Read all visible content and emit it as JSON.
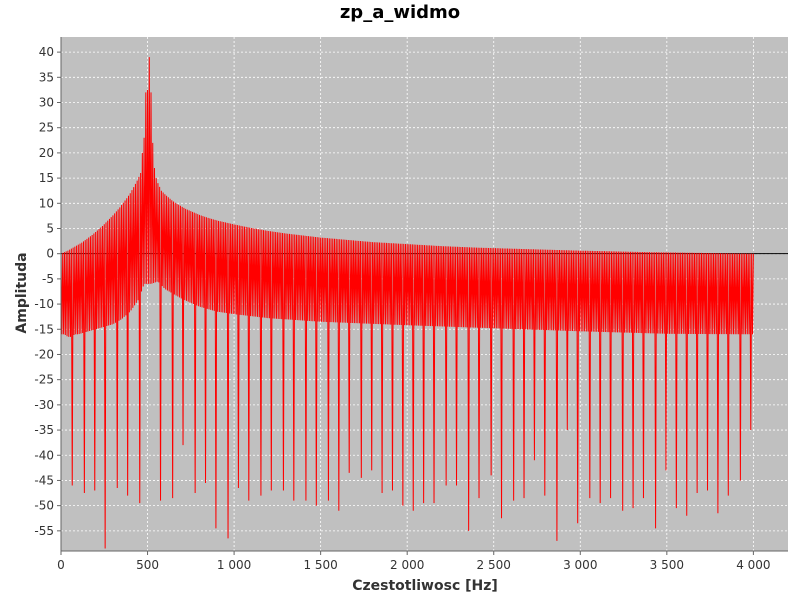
{
  "chart_data": {
    "type": "line",
    "title": "zp_a_widmo",
    "xlabel": "Czestotliwosc [Hz]",
    "ylabel": "Amplituda",
    "xlim": [
      0,
      4200
    ],
    "ylim": [
      -59,
      43
    ],
    "x_ticks": [
      0,
      500,
      1000,
      1500,
      2000,
      2500,
      3000,
      3500,
      4000
    ],
    "x_tick_labels": [
      "0",
      "500",
      "1 000",
      "1 500",
      "2 000",
      "2 500",
      "3 000",
      "3 500",
      "4 000"
    ],
    "y_ticks": [
      -55,
      -50,
      -45,
      -40,
      -35,
      -30,
      -25,
      -20,
      -15,
      -10,
      -5,
      0,
      5,
      10,
      15,
      20,
      25,
      30,
      35,
      40
    ],
    "y_tick_labels": [
      "-55",
      "-50",
      "-45",
      "-40",
      "-35",
      "-30",
      "-25",
      "-20",
      "-15",
      "-10",
      "-5",
      "0",
      "5",
      "10",
      "15",
      "20",
      "25",
      "30",
      "35",
      "40"
    ],
    "grid": true,
    "plot_background": "#c0c0c0",
    "series": [
      {
        "color": "#ff0000",
        "x": [
          0,
          20,
          40,
          60,
          80,
          100,
          120,
          140,
          160,
          180,
          200,
          220,
          240,
          260,
          280,
          300,
          320,
          340,
          360,
          380,
          400,
          420,
          440,
          460,
          470,
          480,
          490,
          500,
          510,
          520,
          530,
          540,
          550,
          560,
          580,
          600,
          620,
          640,
          660,
          680,
          700,
          720,
          740,
          760,
          780,
          800,
          850,
          900,
          950,
          1000,
          1100,
          1200,
          1300,
          1400,
          1500,
          1600,
          1700,
          1800,
          1900,
          2000,
          2200,
          2400,
          2600,
          2800,
          3000,
          3200,
          3400,
          3600,
          3800,
          4000
        ],
        "y": [
          0,
          0.3,
          0.6,
          1,
          1.4,
          1.8,
          2.2,
          2.7,
          3.2,
          3.7,
          4.3,
          4.9,
          5.5,
          6.2,
          6.9,
          7.6,
          8.4,
          9.2,
          10.1,
          11,
          12,
          13.2,
          14.5,
          16,
          20,
          23,
          32,
          32.5,
          39,
          32,
          22,
          17,
          15,
          14,
          12.5,
          11.8,
          11.2,
          10.6,
          10.1,
          9.7,
          9.3,
          8.9,
          8.6,
          8.3,
          8,
          7.7,
          7.1,
          6.6,
          6.2,
          5.8,
          5.1,
          4.5,
          4,
          3.6,
          3.2,
          2.9,
          2.6,
          2.3,
          2.1,
          1.9,
          1.5,
          1.2,
          1,
          0.8,
          0.6,
          0.45,
          0.3,
          0.2,
          0.1,
          0
        ],
        "trough_x": [
          0,
          20,
          40,
          60,
          80,
          100,
          150,
          200,
          250,
          300,
          350,
          400,
          450,
          480,
          500,
          520,
          560,
          600,
          650,
          700,
          800,
          900,
          1000,
          1200,
          1500,
          2000,
          2500,
          3000,
          3500,
          4000
        ],
        "trough_y": [
          -16,
          -16,
          -16.5,
          -16.5,
          -16,
          -16,
          -15.5,
          -15,
          -14.5,
          -14,
          -13,
          -11.5,
          -9,
          -6,
          -6,
          -6,
          -5.5,
          -7,
          -8,
          -9,
          -10.5,
          -11.5,
          -12,
          -12.8,
          -13.5,
          -14.2,
          -14.8,
          -15.4,
          -15.9,
          -16
        ],
        "dips": [
          [
            65,
            -46
          ],
          [
            130,
            -47.5
          ],
          [
            195,
            -47
          ],
          [
            250,
            -58.5
          ],
          [
            320,
            -46.5
          ],
          [
            385,
            -48
          ],
          [
            450,
            -49.5
          ],
          [
            575,
            -49
          ],
          [
            640,
            -48.5
          ],
          [
            705,
            -38
          ],
          [
            770,
            -47.5
          ],
          [
            835,
            -45.5
          ],
          [
            895,
            -54.5
          ],
          [
            960,
            -56.5
          ],
          [
            1020,
            -46.5
          ],
          [
            1085,
            -49
          ],
          [
            1150,
            -48
          ],
          [
            1215,
            -47
          ],
          [
            1280,
            -47
          ],
          [
            1345,
            -49
          ],
          [
            1410,
            -49
          ],
          [
            1475,
            -50
          ],
          [
            1540,
            -49
          ],
          [
            1600,
            -51
          ],
          [
            1665,
            -43.5
          ],
          [
            1730,
            -44.5
          ],
          [
            1790,
            -43
          ],
          [
            1850,
            -47.5
          ],
          [
            1915,
            -47
          ],
          [
            1975,
            -50
          ],
          [
            2035,
            -51
          ],
          [
            2095,
            -49.5
          ],
          [
            2155,
            -49.5
          ],
          [
            2220,
            -46
          ],
          [
            2285,
            -46
          ],
          [
            2350,
            -55
          ],
          [
            2415,
            -48.5
          ],
          [
            2480,
            -44
          ],
          [
            2545,
            -52.5
          ],
          [
            2610,
            -49
          ],
          [
            2670,
            -48.5
          ],
          [
            2735,
            -41
          ],
          [
            2795,
            -48
          ],
          [
            2860,
            -57
          ],
          [
            2925,
            -35
          ],
          [
            2985,
            -53.5
          ],
          [
            3050,
            -48.5
          ],
          [
            3110,
            -49.5
          ],
          [
            3175,
            -48.5
          ],
          [
            3240,
            -51
          ],
          [
            3300,
            -50.5
          ],
          [
            3365,
            -48.5
          ],
          [
            3430,
            -54.5
          ],
          [
            3490,
            -43
          ],
          [
            3550,
            -50.5
          ],
          [
            3610,
            -52
          ],
          [
            3670,
            -47.5
          ],
          [
            3735,
            -47
          ],
          [
            3795,
            -51.5
          ],
          [
            3855,
            -48
          ],
          [
            3920,
            -45
          ],
          [
            3980,
            -35
          ]
        ]
      }
    ]
  }
}
